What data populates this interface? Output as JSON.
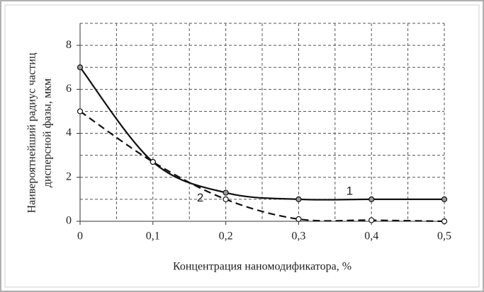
{
  "chart_data": {
    "type": "line",
    "xlabel": "Концентрация наномодификатора, %",
    "ylabel": [
      "Наивероятнейший радиус частиц",
      "дисперсной фазы, мкм"
    ],
    "x": [
      0,
      0.1,
      0.2,
      0.3,
      0.4,
      0.5
    ],
    "series": [
      {
        "name": "1",
        "color": "#111111",
        "dash": false,
        "marker_fill": "#9a9a9a",
        "values": [
          7.0,
          2.7,
          1.3,
          1.0,
          1.0,
          1.0
        ]
      },
      {
        "name": "2",
        "color": "#111111",
        "dash": true,
        "marker_fill": "#ffffff",
        "values": [
          5.0,
          2.7,
          1.0,
          0.1,
          0.05,
          0.0
        ]
      }
    ],
    "xlim": [
      0,
      0.5
    ],
    "ylim": [
      0,
      9
    ],
    "xticks": [
      0,
      {
        "value": 0.1,
        "label": "0,1"
      },
      {
        "value": 0.2,
        "label": "0,2"
      },
      {
        "value": 0.3,
        "label": "0,3"
      },
      {
        "value": 0.4,
        "label": "0,4"
      },
      {
        "value": 0.5,
        "label": "0,5"
      }
    ],
    "yticks": [
      0,
      2,
      4,
      6,
      8
    ],
    "xminorticks": [
      0.05,
      0.15,
      0.25,
      0.35,
      0.45
    ],
    "yminorticks": [
      1,
      3,
      5,
      7,
      9
    ],
    "grid": true
  }
}
